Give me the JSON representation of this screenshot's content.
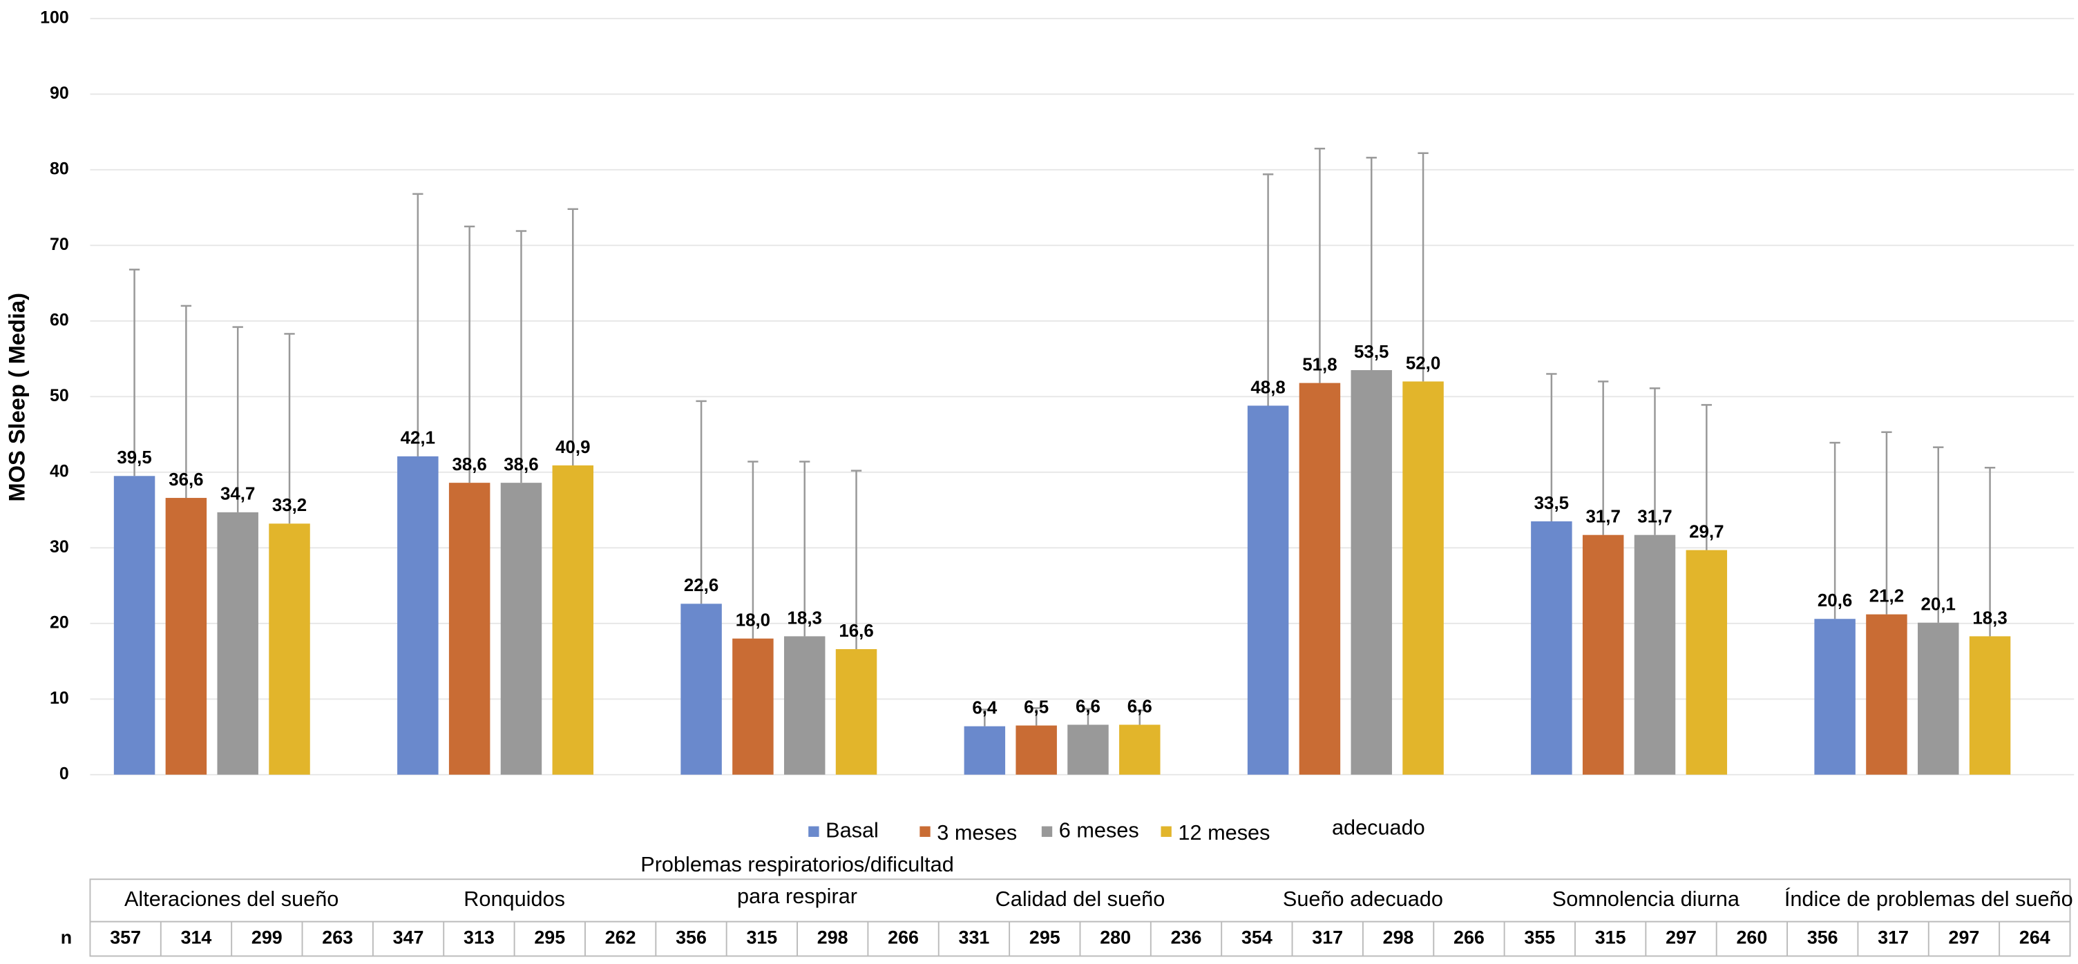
{
  "chart_data": {
    "type": "bar",
    "ylabel": "MOS Sleep ( Media)",
    "ylim": [
      0,
      100
    ],
    "yticks": [
      0,
      10,
      20,
      30,
      40,
      50,
      60,
      70,
      80,
      90,
      100
    ],
    "grid": true,
    "legend": "bottom",
    "categories": [
      "Alteraciones del sueño",
      "Ronquidos",
      "Problemas respiratorios/dificultad\npara respirar",
      "Calidad del sueño",
      "Sueño adecuado",
      "Somnolencia diurna",
      "Índice de problemas del sueño"
    ],
    "annotations": [
      "adecuado"
    ],
    "series": [
      {
        "name": "Basal",
        "color": "#6a89cc",
        "values": [
          39.5,
          42.1,
          22.6,
          6.4,
          48.8,
          33.5,
          20.6
        ],
        "value_labels": [
          "39,5",
          "42,1",
          "22,6",
          "6,4",
          "48,8",
          "33,5",
          "20,6"
        ],
        "errors": [
          27.3,
          34.7,
          26.8,
          2.2,
          30.6,
          19.5,
          23.3
        ],
        "n": [
          357,
          347,
          356,
          331,
          354,
          355,
          356
        ]
      },
      {
        "name": "3 meses",
        "color": "#c96c34",
        "values": [
          36.6,
          38.6,
          18.0,
          6.5,
          51.8,
          31.7,
          21.2
        ],
        "value_labels": [
          "36,6",
          "38,6",
          "18,0",
          "6,5",
          "51,8",
          "31,7",
          "21,2"
        ],
        "errors": [
          25.4,
          33.9,
          23.4,
          2.3,
          31.0,
          20.3,
          24.1
        ],
        "n": [
          314,
          313,
          315,
          295,
          317,
          315,
          317
        ]
      },
      {
        "name": "6 meses",
        "color": "#999999",
        "values": [
          34.7,
          38.6,
          18.3,
          6.6,
          53.5,
          31.7,
          20.1
        ],
        "value_labels": [
          "34,7",
          "38,6",
          "18,3",
          "6,6",
          "53,5",
          "31,7",
          "20,1"
        ],
        "errors": [
          24.5,
          33.3,
          23.1,
          2.1,
          28.1,
          19.4,
          23.2
        ],
        "n": [
          299,
          295,
          298,
          280,
          298,
          297,
          297
        ]
      },
      {
        "name": "12 meses",
        "color": "#e2b52b",
        "values": [
          33.2,
          40.9,
          16.6,
          6.6,
          52.0,
          29.7,
          18.3
        ],
        "value_labels": [
          "33,2",
          "40,9",
          "16,6",
          "6,6",
          "52,0",
          "29,7",
          "18,3"
        ],
        "errors": [
          25.1,
          33.9,
          23.6,
          1.9,
          30.2,
          19.2,
          22.3
        ],
        "n": [
          263,
          262,
          266,
          236,
          266,
          260,
          264
        ]
      }
    ],
    "n_label": "n"
  }
}
